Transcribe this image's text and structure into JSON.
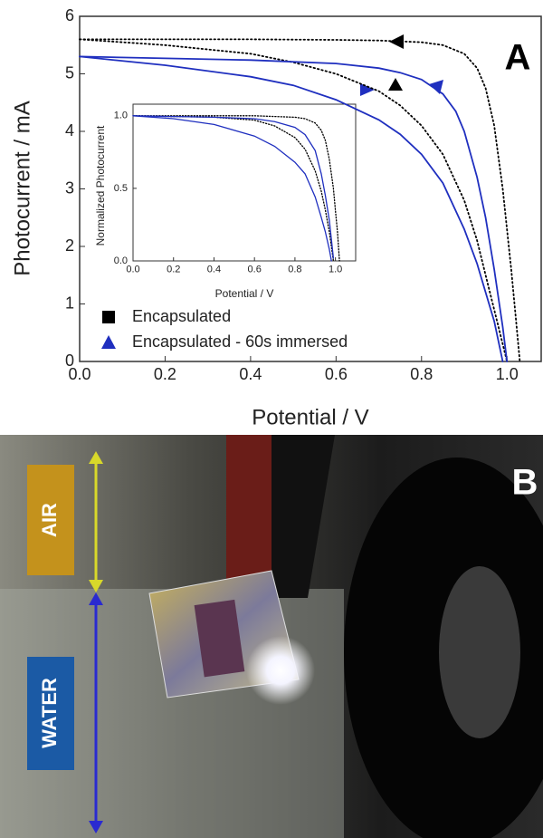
{
  "chart_data": [
    {
      "type": "line",
      "panel_label": "A",
      "x_label": "Potential / V",
      "y_label": "Photocurrent / mA",
      "xlim": [
        0,
        1.08
      ],
      "ylim": [
        0,
        6
      ],
      "xticks": [
        {
          "value": 0,
          "label": "0.0"
        },
        {
          "value": 0.2,
          "label": "0.2"
        },
        {
          "value": 0.4,
          "label": "0.4"
        },
        {
          "value": 0.6,
          "label": "0.6"
        },
        {
          "value": 0.8,
          "label": "0.8"
        },
        {
          "value": 1,
          "label": "1.0"
        }
      ],
      "yticks": [
        0,
        1,
        2,
        3,
        4,
        5,
        6
      ],
      "series": [
        {
          "name": "Encapsulated",
          "color": "#000000",
          "marker": "square",
          "curves": [
            {
              "x": [
                0,
                0.2,
                0.4,
                0.6,
                0.7,
                0.8,
                0.85,
                0.9,
                0.93,
                0.95,
                0.97,
                0.99,
                1.0,
                1.01,
                1.02,
                1.03
              ],
              "values": [
                5.6,
                5.6,
                5.6,
                5.59,
                5.58,
                5.55,
                5.5,
                5.35,
                5.1,
                4.75,
                4.1,
                3.0,
                2.3,
                1.6,
                0.8,
                0
              ]
            },
            {
              "x": [
                0,
                0.2,
                0.4,
                0.5,
                0.6,
                0.7,
                0.75,
                0.8,
                0.85,
                0.9,
                0.93,
                0.95,
                0.97,
                0.99,
                1.0
              ],
              "values": [
                5.6,
                5.5,
                5.35,
                5.2,
                5.0,
                4.7,
                4.45,
                4.1,
                3.6,
                2.8,
                2.1,
                1.5,
                0.9,
                0.3,
                0
              ]
            }
          ]
        },
        {
          "name": "Encapsulated - 60s immersed",
          "color": "#1f2fbf",
          "marker": "triangle",
          "curves": [
            {
              "x": [
                0,
                0.2,
                0.4,
                0.6,
                0.7,
                0.75,
                0.8,
                0.85,
                0.88,
                0.9,
                0.93,
                0.95,
                0.97,
                0.99,
                1.0
              ],
              "values": [
                5.3,
                5.27,
                5.24,
                5.18,
                5.1,
                5.02,
                4.9,
                4.65,
                4.35,
                4.0,
                3.2,
                2.5,
                1.6,
                0.6,
                0
              ]
            },
            {
              "x": [
                0,
                0.2,
                0.4,
                0.5,
                0.6,
                0.7,
                0.75,
                0.8,
                0.85,
                0.9,
                0.93,
                0.95,
                0.97,
                0.99
              ],
              "values": [
                5.3,
                5.15,
                4.95,
                4.8,
                4.55,
                4.2,
                3.95,
                3.6,
                3.1,
                2.3,
                1.7,
                1.2,
                0.7,
                0
              ]
            }
          ]
        }
      ]
    },
    {
      "type": "line",
      "x_label": "Potential / V",
      "y_label": "Normalized Photocurrent",
      "xlim": [
        0,
        1.1
      ],
      "ylim": [
        0,
        1.08
      ],
      "xticks": [
        {
          "value": 0,
          "label": "0.0"
        },
        {
          "value": 0.2,
          "label": "0.2"
        },
        {
          "value": 0.4,
          "label": "0.4"
        },
        {
          "value": 0.6,
          "label": "0.6"
        },
        {
          "value": 0.8,
          "label": "0.8"
        },
        {
          "value": 1,
          "label": "1.0"
        }
      ],
      "yticks": [
        {
          "value": 0,
          "label": "0.0"
        },
        {
          "value": 0.5,
          "label": "0.5"
        },
        {
          "value": 1,
          "label": "1.0"
        }
      ],
      "series": [
        {
          "color": "#000000",
          "marker": "square",
          "curves": [
            {
              "x": [
                0,
                0.4,
                0.6,
                0.7,
                0.8,
                0.85,
                0.9,
                0.93,
                0.95,
                0.97,
                0.99,
                1.0,
                1.01,
                1.02
              ],
              "values": [
                1,
                1,
                1,
                0.995,
                0.99,
                0.98,
                0.95,
                0.9,
                0.83,
                0.7,
                0.5,
                0.35,
                0.2,
                0
              ]
            },
            {
              "x": [
                0,
                0.4,
                0.6,
                0.7,
                0.8,
                0.85,
                0.9,
                0.93,
                0.95,
                0.97,
                0.99
              ],
              "values": [
                1,
                0.99,
                0.97,
                0.93,
                0.85,
                0.77,
                0.62,
                0.48,
                0.35,
                0.2,
                0
              ]
            }
          ]
        },
        {
          "color": "#1f2fbf",
          "marker": "triangle",
          "curves": [
            {
              "x": [
                0,
                0.4,
                0.6,
                0.7,
                0.8,
                0.85,
                0.9,
                0.93,
                0.95,
                0.97,
                0.99
              ],
              "values": [
                1,
                0.99,
                0.98,
                0.96,
                0.92,
                0.87,
                0.76,
                0.6,
                0.45,
                0.28,
                0.02
              ]
            },
            {
              "x": [
                0,
                0.2,
                0.4,
                0.6,
                0.7,
                0.8,
                0.85,
                0.9,
                0.93,
                0.95,
                0.97,
                0.98
              ],
              "values": [
                1,
                0.98,
                0.94,
                0.86,
                0.79,
                0.68,
                0.6,
                0.44,
                0.3,
                0.2,
                0.08,
                0
              ]
            }
          ]
        }
      ]
    }
  ],
  "panel_b": {
    "label": "B",
    "annotations": [
      "AIR",
      "WATER"
    ]
  }
}
